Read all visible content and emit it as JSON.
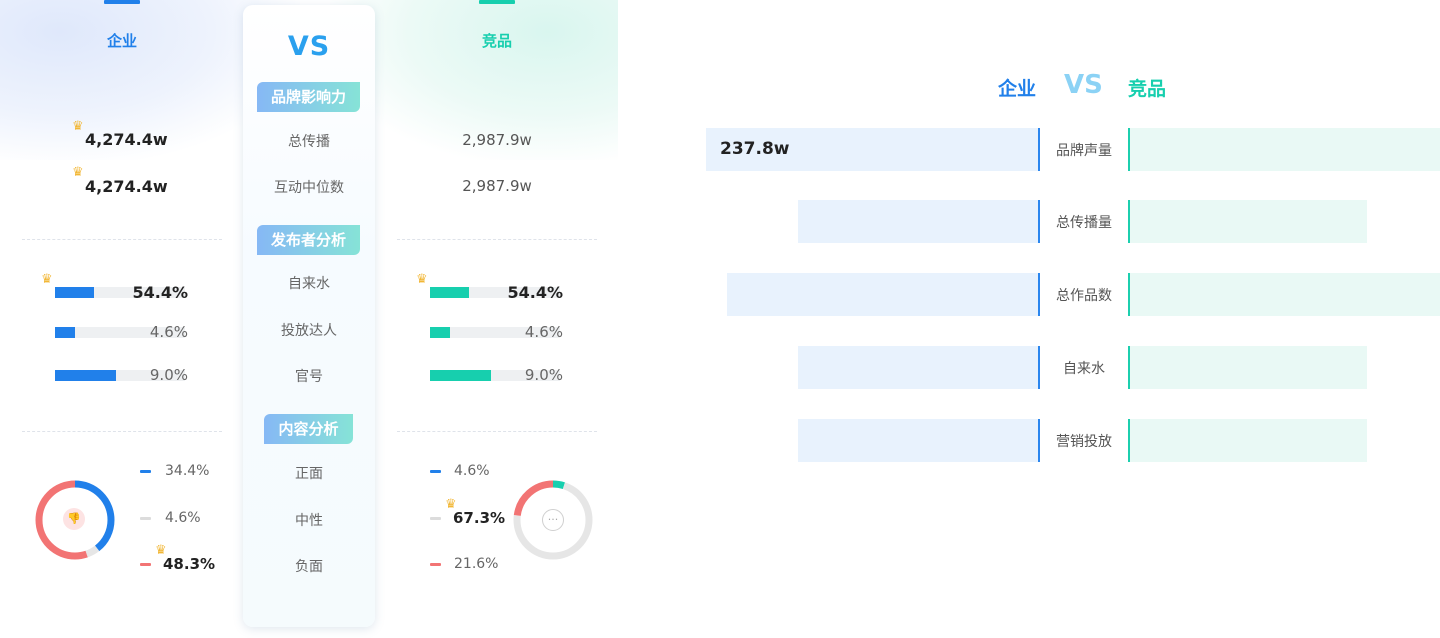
{
  "header": {
    "left": "企业",
    "vs": "VS",
    "right": "竞品"
  },
  "sections": [
    {
      "title": "品牌影响力",
      "metrics": [
        "总传播",
        "互动中位数"
      ]
    },
    {
      "title": "发布者分析",
      "metrics": [
        "自来水",
        "投放达人",
        "官号"
      ]
    },
    {
      "title": "内容分析",
      "metrics": [
        "正面",
        "中性",
        "负面"
      ]
    }
  ],
  "enterprise": {
    "influence": [
      "4,274.4w",
      "4,274.4w"
    ],
    "publishers": [
      {
        "label": "54.4%",
        "value": 0.544
      },
      {
        "label": "4.6%",
        "value": 0.046
      },
      {
        "label": "9.0%",
        "value": 0.09
      }
    ],
    "sentiment": [
      {
        "label": "34.4%",
        "value": 34.4
      },
      {
        "label": "4.6%",
        "value": 4.6
      },
      {
        "label": "48.3%",
        "value": 48.3
      }
    ],
    "sentiment_icon": "thumbs-down-icon"
  },
  "competitor": {
    "influence": [
      "2,987.9w",
      "2,987.9w"
    ],
    "publishers": [
      {
        "label": "54.4%",
        "value": 0.544
      },
      {
        "label": "4.6%",
        "value": 0.046
      },
      {
        "label": "9.0%",
        "value": 0.09
      }
    ],
    "sentiment": [
      {
        "label": "4.6%",
        "value": 4.6
      },
      {
        "label": "67.3%",
        "value": 67.3
      },
      {
        "label": "21.6%",
        "value": 21.6
      }
    ],
    "sentiment_icon": "neutral-chat-icon"
  },
  "colors": {
    "enterprise": "#2180ea",
    "competitor": "#17cfae",
    "positive_enterprise": "#2180ea",
    "positive_competitor": "#17cfae",
    "neutral": "#e6e6e6",
    "negative": "#f27474",
    "crown": "#f2b736"
  },
  "icons": {
    "winner": "crown-icon"
  },
  "chart_data": {
    "type": "bar",
    "orientation": "horizontal-butterfly",
    "title_left": "企业",
    "title_vs": "VS",
    "title_right": "竞品",
    "categories": [
      "品牌声量",
      "总传播量",
      "总作品数",
      "自来水",
      "营销投放"
    ],
    "series": [
      {
        "name": "企业",
        "values": [
          237.8,
          172.6,
          223.1,
          172.6,
          172.6
        ]
      },
      {
        "name": "竞品",
        "values": [
          222.4,
          170.3,
          222.4,
          170.3,
          170.3
        ]
      }
    ],
    "data_labels": [
      "237.8w",
      "",
      "",
      "",
      ""
    ]
  }
}
